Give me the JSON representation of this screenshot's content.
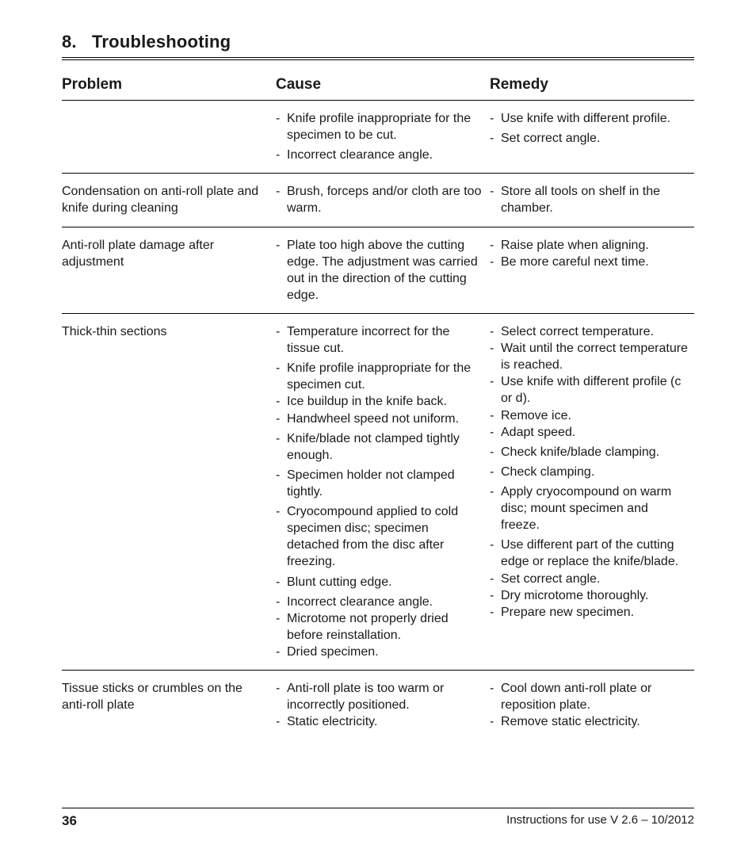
{
  "section": {
    "number": "8.",
    "title": "Troubleshooting"
  },
  "headers": {
    "problem": "Problem",
    "cause": "Cause",
    "remedy": "Remedy"
  },
  "rows": [
    {
      "problem": "",
      "causes": [
        "Knife profile inappropriate for the specimen to be cut.",
        "Incorrect clearance angle."
      ],
      "remedies": [
        "Use knife with different profile.",
        "Set correct angle."
      ],
      "cause_gaps": [
        0
      ],
      "remedy_gaps": [
        0
      ]
    },
    {
      "problem": "Condensation on anti-roll plate and knife during cleaning",
      "causes": [
        "Brush, forceps and/or cloth are too warm."
      ],
      "remedies": [
        "Store all tools on shelf in the chamber."
      ]
    },
    {
      "problem": "Anti-roll plate damage after adjustment",
      "causes": [
        "Plate too high above the cutting edge. The adjustment was carried out in the direction of the cutting edge."
      ],
      "remedies": [
        "Raise plate when aligning.",
        "Be more careful next time."
      ]
    },
    {
      "problem": "Thick-thin sections",
      "causes": [
        "Temperature incorrect for the tissue cut.",
        "Knife profile inappropriate for the specimen cut.",
        "Ice buildup in the knife back.",
        "Handwheel speed not uniform.",
        "Knife/blade not clamped tightly enough.",
        "Specimen holder not clamped tightly.",
        "Cryocompound applied to cold specimen disc; specimen detached from the disc after freezing.",
        "Blunt cutting edge.",
        "Incorrect clearance angle.",
        "Microtome not properly dried before reinstallation.",
        "Dried specimen."
      ],
      "remedies": [
        "Select correct temperature.",
        "Wait until the correct temperature is reached.",
        "Use knife with different profile (c or d).",
        "Remove ice.",
        "Adapt speed.",
        "Check knife/blade clamping.",
        "Check clamping.",
        "Apply cryocompound on warm disc; mount specimen and freeze.",
        "Use different part of the cutting edge or replace the knife/blade.",
        "Set correct angle.",
        "Dry microtome thoroughly.",
        "Prepare new specimen."
      ],
      "cause_gaps": [
        0,
        3,
        4,
        5,
        6,
        7
      ],
      "remedy_gaps": [
        4,
        5,
        6,
        7
      ]
    },
    {
      "problem": "Tissue sticks or crumbles on the anti-roll plate",
      "causes": [
        "Anti-roll plate is too warm or incorrectly positioned.",
        "Static electricity."
      ],
      "remedies": [
        "Cool down anti-roll plate or reposition plate.",
        "Remove static electricity."
      ]
    }
  ],
  "footer": {
    "page": "36",
    "note": "Instructions for use V 2.6 – 10/2012"
  }
}
